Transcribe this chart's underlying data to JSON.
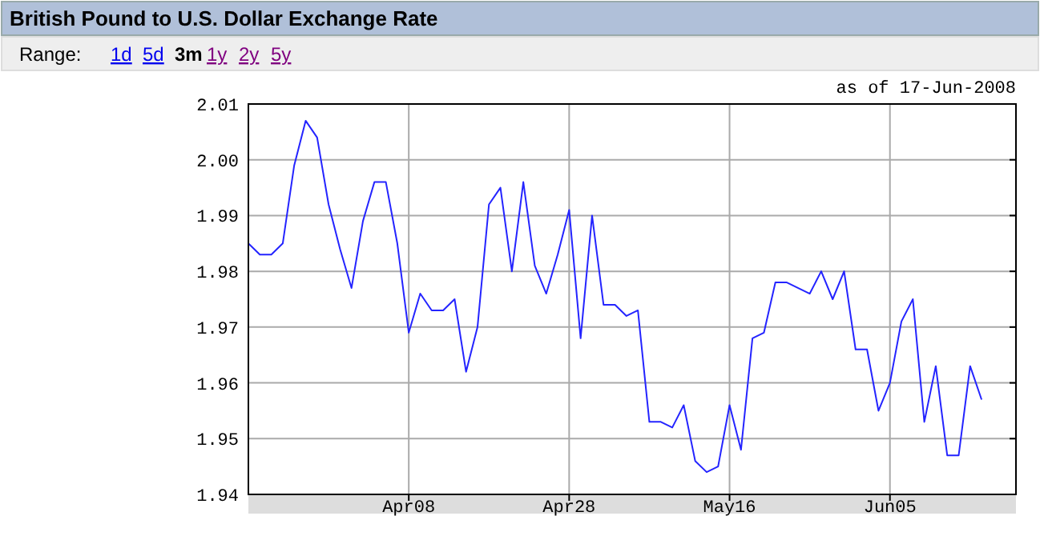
{
  "chart_data": {
    "type": "line",
    "title": "British Pound to U.S. Dollar Exchange Rate",
    "annotations": [
      "Range:",
      "1d",
      "5d",
      "3m",
      "1y",
      "2y",
      "5y",
      "as of 17-Jun-2008"
    ],
    "categories": [
      null,
      null,
      null,
      null,
      null,
      null,
      null,
      null,
      null,
      null,
      null,
      null,
      null,
      null,
      "Apr08",
      null,
      null,
      null,
      null,
      null,
      null,
      null,
      null,
      null,
      null,
      null,
      null,
      null,
      "Apr28",
      null,
      null,
      null,
      null,
      null,
      null,
      null,
      null,
      null,
      null,
      null,
      null,
      null,
      "May16",
      null,
      null,
      null,
      null,
      null,
      null,
      null,
      null,
      null,
      null,
      null,
      null,
      null,
      "Jun05",
      null,
      null,
      null,
      null,
      null,
      null,
      null,
      null,
      null,
      null,
      null
    ],
    "series": [
      {
        "color": "#2424ff",
        "values": [
          1.985,
          1.983,
          1.983,
          1.985,
          1.999,
          2.007,
          2.004,
          1.992,
          1.984,
          1.977,
          1.989,
          1.996,
          1.996,
          1.985,
          1.969,
          1.976,
          1.973,
          1.973,
          1.975,
          1.962,
          1.97,
          1.992,
          1.995,
          1.98,
          1.996,
          1.981,
          1.976,
          1.983,
          1.991,
          1.968,
          1.99,
          1.974,
          1.974,
          1.972,
          1.973,
          1.953,
          1.953,
          1.952,
          1.956,
          1.946,
          1.944,
          1.945,
          1.956,
          1.948,
          1.968,
          1.969,
          1.978,
          1.978,
          1.977,
          1.976,
          1.98,
          1.975,
          1.98,
          1.966,
          1.966,
          1.955,
          1.96,
          1.971,
          1.975,
          1.953,
          1.963,
          1.947,
          1.947,
          1.963,
          1.957,
          null,
          null,
          null
        ]
      }
    ],
    "ylim": [
      1.94,
      2.01
    ],
    "yticks": [
      1.94,
      1.95,
      1.96,
      1.97,
      1.98,
      1.99,
      {
        "value": 2,
        "label": "2.00"
      },
      2.01
    ],
    "grid": true,
    "marker": "none",
    "line_style": "solid"
  }
}
